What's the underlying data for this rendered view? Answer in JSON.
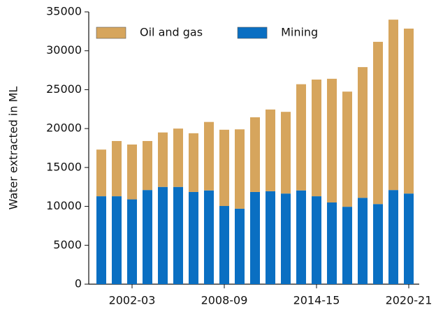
{
  "chart_data": {
    "type": "stacked_bar",
    "y_label": "Water extracted in ML",
    "categories": [
      "2000-01",
      "2001-02",
      "2002-03",
      "2003-04",
      "2004-05",
      "2005-06",
      "2006-07",
      "2007-08",
      "2008-09",
      "2009-10",
      "2010-11",
      "2011-12",
      "2012-13",
      "2013-14",
      "2014-15",
      "2015-16",
      "2016-17",
      "2017-18",
      "2018-19",
      "2019-20",
      "2020-21"
    ],
    "category_labels": [
      null,
      null,
      "2002-03",
      null,
      null,
      null,
      null,
      null,
      "2008-09",
      null,
      null,
      null,
      null,
      null,
      "2014-15",
      null,
      null,
      null,
      null,
      null,
      "2020-21"
    ],
    "series": [
      {
        "name": "Mining",
        "color": "#0a6fc2",
        "values": [
          11300,
          11300,
          10900,
          12100,
          12500,
          12500,
          11850,
          12050,
          10050,
          9700,
          11850,
          11950,
          11650,
          12050,
          11300,
          10500,
          9950,
          11100,
          10300,
          12100,
          11650
        ]
      },
      {
        "name": "Oil and gas",
        "color": "#d6a55d",
        "values": [
          6000,
          7100,
          7050,
          6300,
          7000,
          7500,
          7550,
          8800,
          9800,
          10200,
          9600,
          10500,
          10500,
          13650,
          15000,
          15900,
          14800,
          16800,
          20850,
          21900,
          21200
        ]
      }
    ],
    "legend_order": [
      1,
      0
    ],
    "ylim": [
      0,
      35000
    ],
    "yticks": [
      0,
      5000,
      10000,
      15000,
      20000,
      25000,
      30000,
      35000
    ],
    "grid": false
  }
}
